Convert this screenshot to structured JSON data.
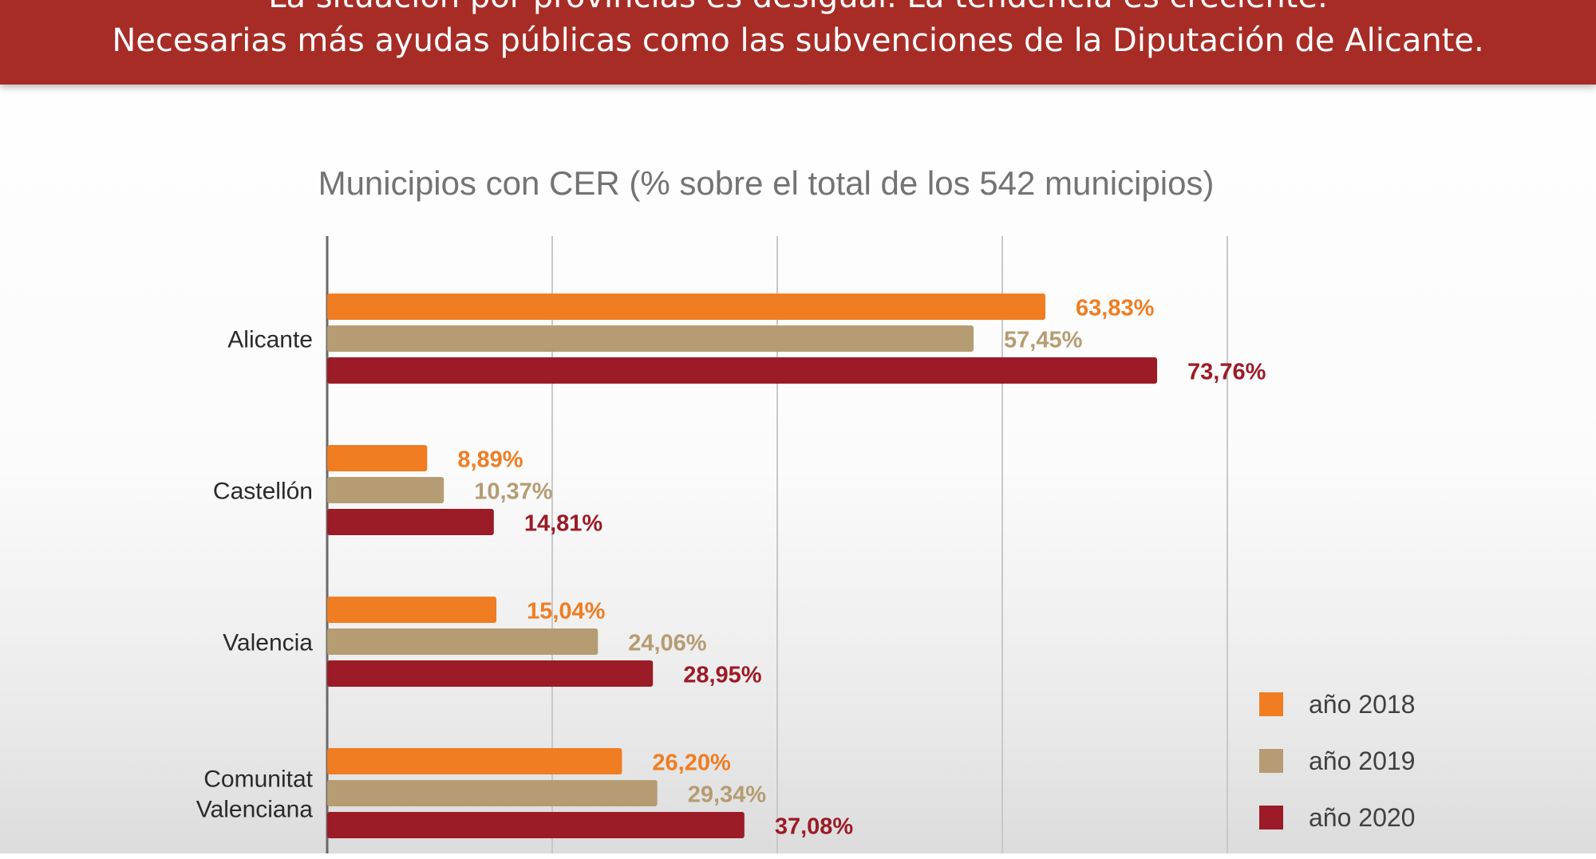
{
  "banner": {
    "line1": "La situación por provincias es desigual. La tendencia es creciente.",
    "line2": "Necesarias más ayudas públicas como las subvenciones de la Diputación de Alicante."
  },
  "colors": {
    "banner": "#a72c26",
    "series_2018": "#f07d22",
    "series_2019": "#b59c72",
    "series_2020": "#9b1b26",
    "grid": "#c8c8c8"
  },
  "chart_data": {
    "type": "bar",
    "orientation": "horizontal",
    "title": "Municipios con CER (% sobre el total de los 542 municipios)",
    "categories": [
      "Alicante",
      "Castellón",
      "Valencia",
      "Comunitat Valenciana"
    ],
    "category_lines": [
      [
        "Alicante"
      ],
      [
        "Castellón"
      ],
      [
        "Valencia"
      ],
      [
        "Comunitat",
        "Valenciana"
      ]
    ],
    "series": [
      {
        "name": "año 2018",
        "color": "#f07d22",
        "values": [
          63.83,
          8.89,
          15.04,
          26.2
        ],
        "labels": [
          "63,83%",
          "8,89%",
          "15,04%",
          "26,20%"
        ]
      },
      {
        "name": "año 2019",
        "color": "#b59c72",
        "values": [
          57.45,
          10.37,
          24.06,
          29.34
        ],
        "labels": [
          "57,45%",
          "10,37%",
          "24,06%",
          "29,34%"
        ]
      },
      {
        "name": "año 2020",
        "color": "#9b1b26",
        "values": [
          73.76,
          14.81,
          28.95,
          37.08
        ],
        "labels": [
          "73,76%",
          "14,81%",
          "28,95%",
          "37,08%"
        ]
      }
    ],
    "xlim": [
      0,
      100
    ],
    "x_gridlines": [
      0,
      20,
      40,
      60,
      80
    ],
    "grid": true,
    "legend_position": "bottom-right"
  }
}
